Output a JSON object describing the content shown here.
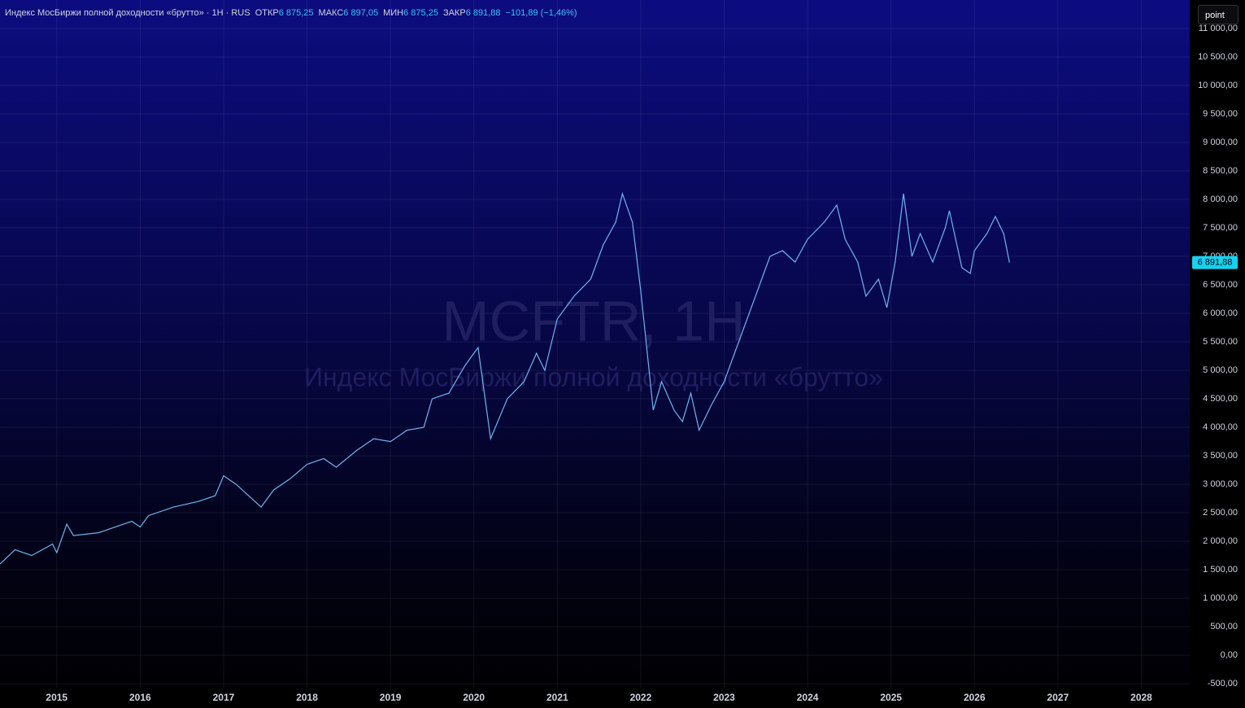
{
  "chart_data": {
    "type": "line",
    "title": "Индекс МосБиржи полной доходности «брутто» · 1H · RUS",
    "ohlc": [
      {
        "label": "ОТКР",
        "value": "6 875,25"
      },
      {
        "label": "МАКС",
        "value": "6 897,05"
      },
      {
        "label": "МИН",
        "value": "6 875,25"
      },
      {
        "label": "ЗАКР",
        "value": "6 891,88"
      }
    ],
    "change": "−101,89 (−1,46%)",
    "watermark": "MCFTR, 1H",
    "watermark_subtitle": "Индекс МосБиржи полной доходности «брутто»",
    "button": "point",
    "price_tag": {
      "value": 6891.88,
      "label": "6 891,88"
    },
    "grid": true,
    "series": [
      {
        "name": "MCFTR",
        "color": "#6fb4f0",
        "x": [
          2014.32,
          2014.5,
          2014.7,
          2014.95,
          2015.0,
          2015.12,
          2015.2,
          2015.5,
          2015.9,
          2016.0,
          2016.1,
          2016.4,
          2016.7,
          2016.9,
          2017.0,
          2017.15,
          2017.3,
          2017.45,
          2017.6,
          2017.8,
          2018.0,
          2018.2,
          2018.35,
          2018.6,
          2018.8,
          2019.0,
          2019.2,
          2019.4,
          2019.5,
          2019.7,
          2019.9,
          2020.05,
          2020.2,
          2020.4,
          2020.6,
          2020.75,
          2020.85,
          2021.0,
          2021.2,
          2021.4,
          2021.55,
          2021.7,
          2021.78,
          2021.9,
          2022.0,
          2022.15,
          2022.25,
          2022.4,
          2022.5,
          2022.6,
          2022.7,
          2022.85,
          2023.0,
          2023.2,
          2023.4,
          2023.55,
          2023.7,
          2023.85,
          2024.0,
          2024.2,
          2024.35,
          2024.45,
          2024.6,
          2024.7,
          2024.85,
          2024.95,
          2025.05,
          2025.15,
          2025.25,
          2025.35,
          2025.5,
          2025.65,
          2025.7,
          2025.85,
          2025.95,
          2026.0,
          2026.15,
          2026.25,
          2026.35,
          2026.42
        ],
        "values": [
          1600,
          1850,
          1750,
          1950,
          1800,
          2300,
          2100,
          2150,
          2350,
          2250,
          2450,
          2600,
          2700,
          2800,
          3150,
          3000,
          2800,
          2600,
          2900,
          3100,
          3350,
          3450,
          3300,
          3600,
          3800,
          3750,
          3950,
          4000,
          4500,
          4600,
          5100,
          5400,
          3800,
          4500,
          4800,
          5300,
          5000,
          5900,
          6300,
          6600,
          7200,
          7600,
          8100,
          7600,
          6400,
          4300,
          4800,
          4300,
          4100,
          4600,
          3950,
          4400,
          4800,
          5600,
          6400,
          7000,
          7100,
          6900,
          7300,
          7600,
          7900,
          7300,
          6900,
          6300,
          6600,
          6100,
          6900,
          8100,
          7000,
          7400,
          6900,
          7500,
          7800,
          6800,
          6700,
          7100,
          7400,
          7700,
          7400,
          6891.88
        ]
      }
    ],
    "xlim": [
      2014.32,
      2028.58
    ],
    "xticks": [
      2015,
      2016,
      2017,
      2018,
      2019,
      2020,
      2021,
      2022,
      2023,
      2024,
      2025,
      2026,
      2027,
      2028
    ],
    "ylim": [
      -570,
      11500
    ],
    "yticks": [
      {
        "value": -500,
        "label": "-500,00"
      },
      {
        "value": 0,
        "label": "0,00"
      },
      {
        "value": 500,
        "label": "500,00"
      },
      {
        "value": 1000,
        "label": "1 000,00"
      },
      {
        "value": 1500,
        "label": "1 500,00"
      },
      {
        "value": 2000,
        "label": "2 000,00"
      },
      {
        "value": 2500,
        "label": "2 500,00"
      },
      {
        "value": 3000,
        "label": "3 000,00"
      },
      {
        "value": 3500,
        "label": "3 500,00"
      },
      {
        "value": 4000,
        "label": "4 000,00"
      },
      {
        "value": 4500,
        "label": "4 500,00"
      },
      {
        "value": 5000,
        "label": "5 000,00"
      },
      {
        "value": 5500,
        "label": "5 500,00"
      },
      {
        "value": 6000,
        "label": "6 000,00"
      },
      {
        "value": 6500,
        "label": "6 500,00"
      },
      {
        "value": 7000,
        "label": "7 000,00"
      },
      {
        "value": 7500,
        "label": "7 500,00"
      },
      {
        "value": 8000,
        "label": "8 000,00"
      },
      {
        "value": 8500,
        "label": "8 500,00"
      },
      {
        "value": 9000,
        "label": "9 000,00"
      },
      {
        "value": 9500,
        "label": "9 500,00"
      },
      {
        "value": 10000,
        "label": "10 000,00"
      },
      {
        "value": 10500,
        "label": "10 500,00"
      },
      {
        "value": 11000,
        "label": "11 000,00"
      }
    ]
  }
}
